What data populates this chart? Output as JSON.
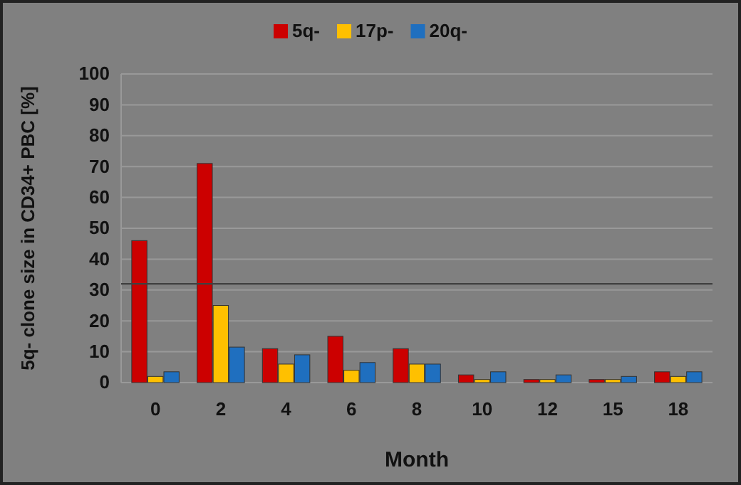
{
  "chart_data": {
    "type": "bar",
    "xlabel": "Month",
    "ylabel": "5q- clone size in CD34+ PBC [%]",
    "categories": [
      "0",
      "2",
      "4",
      "6",
      "8",
      "10",
      "12",
      "15",
      "18"
    ],
    "series": [
      {
        "name": "5q-",
        "color": "#cc0000",
        "values": [
          46,
          71,
          11,
          15,
          11,
          2.5,
          1,
          1,
          3.5
        ]
      },
      {
        "name": "17p-",
        "color": "#ffc000",
        "values": [
          2,
          25,
          6,
          4,
          6,
          1,
          1,
          1,
          2
        ]
      },
      {
        "name": "20q-",
        "color": "#1f6fbf",
        "values": [
          3.5,
          11.5,
          9,
          6.5,
          6,
          3.5,
          2.5,
          2,
          3.5
        ]
      }
    ],
    "ylim": [
      0,
      100
    ],
    "yticks": [
      0,
      10,
      20,
      30,
      40,
      50,
      60,
      70,
      80,
      90,
      100
    ],
    "ref_lines": [
      {
        "axis": "y",
        "value": 32,
        "color": "#404040"
      }
    ],
    "grid": "y",
    "legend": "top"
  }
}
